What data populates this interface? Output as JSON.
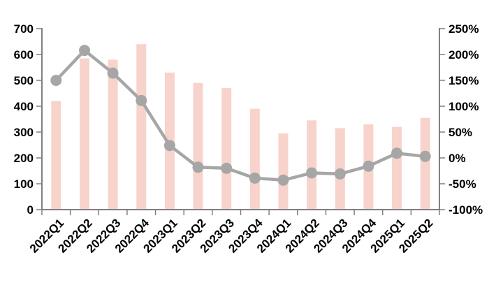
{
  "chart_data": {
    "type": "combo",
    "title": "",
    "legend": "none",
    "grid": "off",
    "background": "#ffffff",
    "categories": [
      "2022Q1",
      "2022Q2",
      "2022Q3",
      "2022Q4",
      "2023Q1",
      "2023Q2",
      "2023Q3",
      "2023Q4",
      "2024Q1",
      "2024Q2",
      "2024Q3",
      "2024Q4",
      "2025Q1",
      "2025Q2"
    ],
    "series": [
      {
        "name": "bars",
        "type": "bar",
        "axis": "left",
        "color": "#f8d3cb",
        "values": [
          420,
          585,
          580,
          640,
          530,
          490,
          470,
          390,
          295,
          345,
          315,
          330,
          320,
          355
        ]
      },
      {
        "name": "line",
        "type": "line",
        "axis": "right",
        "color": "#a6a6a6",
        "marker": "circle",
        "values": [
          150,
          208,
          164,
          111,
          24,
          -18,
          -20,
          -39,
          -43,
          -29,
          -31,
          -16,
          9,
          3
        ]
      }
    ],
    "left_axis": {
      "min": 0,
      "max": 700,
      "step": 100,
      "tick_labels": [
        "0",
        "100",
        "200",
        "300",
        "400",
        "500",
        "600",
        "700"
      ]
    },
    "right_axis": {
      "min": -100,
      "max": 250,
      "step": 50,
      "unit": "%",
      "tick_labels": [
        "-100%",
        "-50%",
        "0%",
        "50%",
        "100%",
        "150%",
        "200%",
        "250%"
      ]
    },
    "x_axis": {
      "label_rotation_deg": -45,
      "tick_mode": "between-categories"
    },
    "colors": {
      "axis_line": "#808080",
      "tick_mark": "#808080",
      "label_text": "#000000"
    }
  }
}
